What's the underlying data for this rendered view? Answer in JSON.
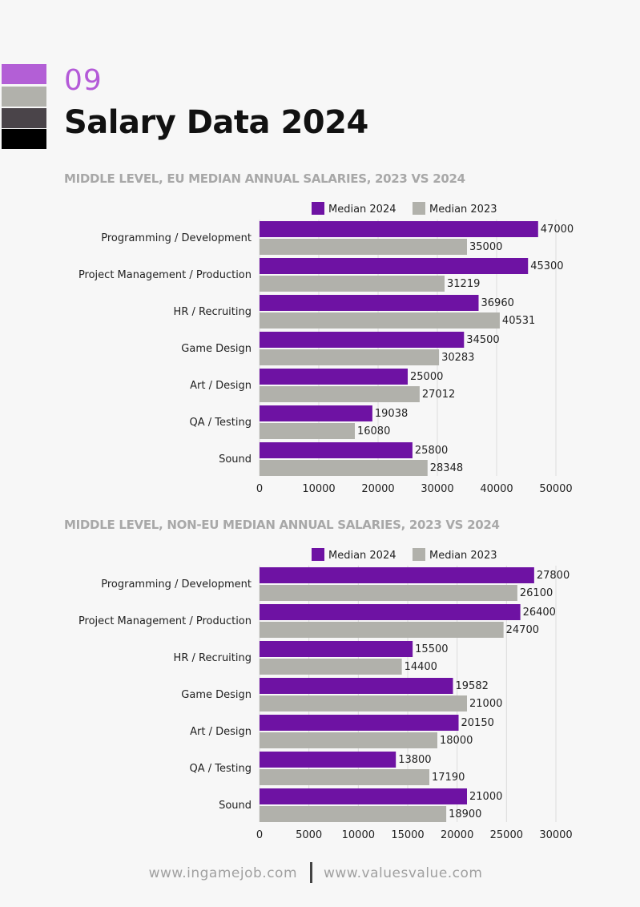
{
  "colors": {
    "swatches": [
      "#b35fd6",
      "#b1b1ab",
      "#4a4449",
      "#000000"
    ],
    "series_2024": "#6e12a3",
    "series_2023": "#b1b1ab",
    "accent": "#b45ad8"
  },
  "header": {
    "page_number": "09",
    "title": "Salary Data 2024"
  },
  "footer": {
    "left_url": "www.ingamejob.com",
    "right_url": "www.valuesvalue.com"
  },
  "chart_data": [
    {
      "type": "bar",
      "orientation": "horizontal",
      "title": "MIDDLE LEVEL, EU MEDIAN ANNUAL SALARIES, 2023 VS 2024",
      "categories": [
        "Programming / Development",
        "Project Management / Production",
        "HR / Recruiting",
        "Game Design",
        "Art / Design",
        "QA / Testing",
        "Sound"
      ],
      "series": [
        {
          "name": "Median 2024",
          "values": [
            47000,
            45300,
            36960,
            34500,
            25000,
            19038,
            25800
          ]
        },
        {
          "name": "Median 2023",
          "values": [
            35000,
            31219,
            40531,
            30283,
            27012,
            16080,
            28348
          ]
        }
      ],
      "xlim": [
        0,
        50000
      ],
      "xticks": [
        0,
        10000,
        20000,
        30000,
        40000,
        50000
      ],
      "grid": true,
      "legend": "top"
    },
    {
      "type": "bar",
      "orientation": "horizontal",
      "title": "MIDDLE LEVEL, NON-EU MEDIAN ANNUAL SALARIES, 2023 VS 2024",
      "categories": [
        "Programming / Development",
        "Project Management / Production",
        "HR / Recruiting",
        "Game Design",
        "Art / Design",
        "QA / Testing",
        "Sound"
      ],
      "series": [
        {
          "name": "Median 2024",
          "values": [
            27800,
            26400,
            15500,
            19582,
            20150,
            13800,
            21000
          ]
        },
        {
          "name": "Median 2023",
          "values": [
            26100,
            24700,
            14400,
            21000,
            18000,
            17190,
            18900
          ]
        }
      ],
      "xlim": [
        0,
        30000
      ],
      "xticks": [
        0,
        5000,
        10000,
        15000,
        20000,
        25000,
        30000
      ],
      "grid": true,
      "legend": "top"
    }
  ]
}
